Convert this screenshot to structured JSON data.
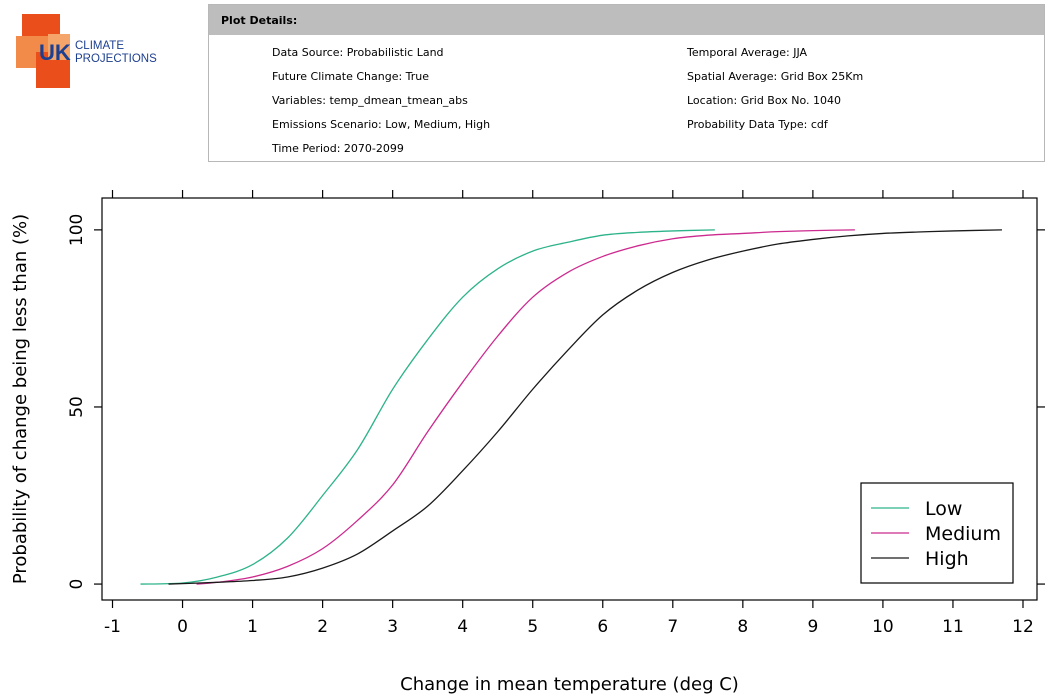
{
  "logo": {
    "text_uk": "UK",
    "text_line1": "CLIMATE",
    "text_line2": "PROJECTIONS"
  },
  "details": {
    "header": "Plot Details:",
    "left": [
      "Data Source: Probabilistic Land",
      "Future Climate Change: True",
      "Variables: temp_dmean_tmean_abs",
      "Emissions Scenario: Low, Medium, High",
      "Time Period: 2070-2099"
    ],
    "right": [
      "Temporal Average: JJA",
      "Spatial Average: Grid Box 25Km",
      "Location: Grid Box No. 1040",
      "Probability Data Type: cdf"
    ]
  },
  "colors": {
    "low": "#2db38a",
    "medium": "#cc2a8f",
    "high": "#1a1a1a"
  },
  "chart_data": {
    "type": "line",
    "xlabel": "Change in mean temperature (deg C)",
    "ylabel": "Probability of change being less than (%)",
    "xlim": [
      -1.15,
      12.2
    ],
    "ylim": [
      -4.5,
      109
    ],
    "xticks": [
      -1,
      0,
      1,
      2,
      3,
      4,
      5,
      6,
      7,
      8,
      9,
      10,
      11,
      12
    ],
    "yticks": [
      0,
      50,
      100
    ],
    "legend": {
      "position": "bottom-right"
    },
    "series": [
      {
        "name": "Low",
        "color": "#2db38a",
        "x": [
          -0.6,
          0,
          0.5,
          1,
          1.5,
          2,
          2.5,
          3,
          3.5,
          4,
          4.5,
          5,
          5.5,
          6,
          6.5,
          7,
          7.6
        ],
        "y": [
          0,
          0.3,
          2,
          5.5,
          13,
          25,
          38,
          55,
          69,
          81,
          89,
          94,
          96.5,
          98.5,
          99.3,
          99.7,
          100
        ]
      },
      {
        "name": "Medium",
        "color": "#cc2a8f",
        "x": [
          0.2,
          0.5,
          1,
          1.5,
          2,
          2.5,
          3,
          3.5,
          4,
          4.5,
          5,
          5.5,
          6,
          6.5,
          7,
          7.5,
          8,
          8.5,
          9,
          9.6
        ],
        "y": [
          0,
          0.5,
          2,
          5,
          10,
          18,
          28,
          43,
          57,
          70,
          81,
          88,
          92.5,
          95.5,
          97.5,
          98.5,
          99,
          99.5,
          99.8,
          100
        ]
      },
      {
        "name": "High",
        "color": "#1a1a1a",
        "x": [
          -0.2,
          0.5,
          1,
          1.5,
          2,
          2.5,
          3,
          3.5,
          4,
          4.5,
          5,
          5.5,
          6,
          6.5,
          7,
          7.5,
          8,
          8.5,
          9,
          9.5,
          10,
          10.5,
          11,
          11.7
        ],
        "y": [
          0,
          0.5,
          1,
          2,
          4.5,
          8.5,
          15,
          22,
          32,
          43,
          55,
          66,
          76,
          83,
          88,
          91.5,
          94,
          96,
          97.3,
          98.3,
          99,
          99.4,
          99.7,
          100
        ]
      }
    ]
  }
}
